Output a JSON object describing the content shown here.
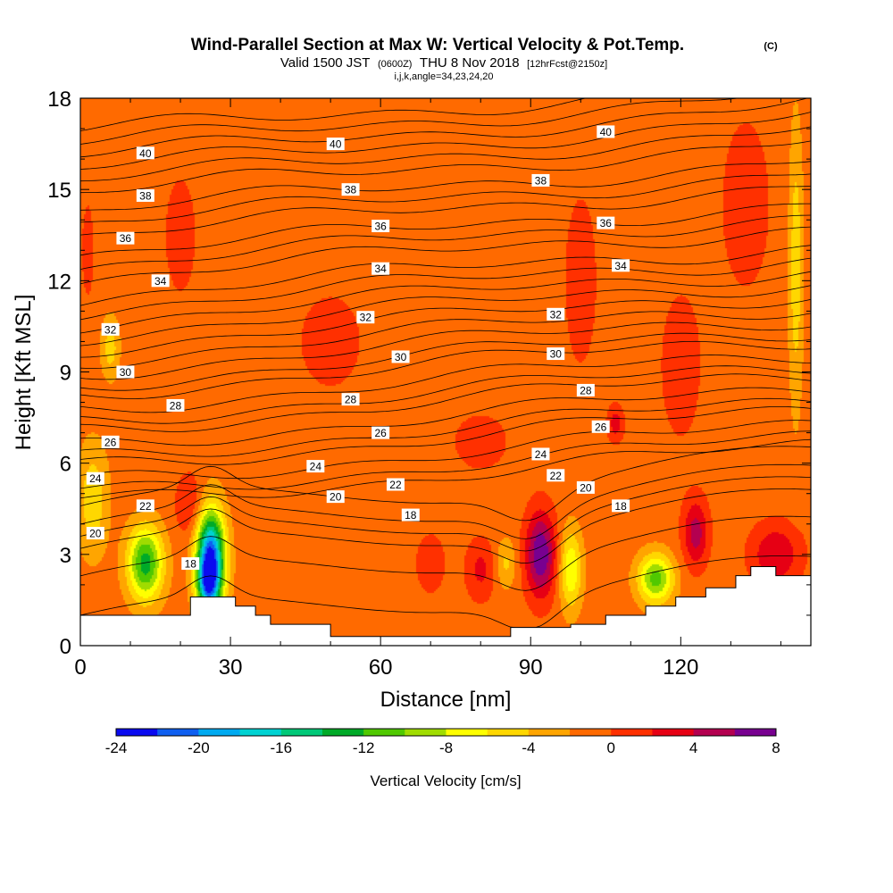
{
  "title": {
    "main": "Wind-Parallel Section at Max W: Vertical Velocity & Pot.Temp.",
    "copyright": "(C)",
    "valid_prefix": "Valid 1500 JST",
    "valid_utc": "(0600Z)",
    "valid_date": "THU 8 Nov 2018",
    "forecast": "[12hrFcst@2150z]",
    "indices": "i,j,k,angle=34,23,24,20"
  },
  "chart_data": {
    "type": "heatmap",
    "title": "Wind-Parallel Section at Max W: Vertical Velocity & Pot.Temp.",
    "xlabel": "Distance [nm]",
    "ylabel": "Height [Kft MSL]",
    "xlim": [
      0,
      146
    ],
    "ylim": [
      0,
      18
    ],
    "x_ticks": [
      "0",
      "30",
      "60",
      "90",
      "120"
    ],
    "y_ticks": [
      "0",
      "3",
      "6",
      "9",
      "12",
      "15",
      "18"
    ],
    "background_value": -1,
    "velocity_features": [
      {
        "x": 13,
        "y": 2.7,
        "sx": 3.5,
        "sy": 1.2,
        "amp": -12
      },
      {
        "x": 26,
        "y": 2.8,
        "sx": 2.8,
        "sy": 1.6,
        "amp": -22
      },
      {
        "x": 25.5,
        "y": 2.0,
        "sx": 2.0,
        "sy": 0.8,
        "amp": -8
      },
      {
        "x": 22,
        "y": 4.6,
        "sx": 3.0,
        "sy": 1.1,
        "amp": 3
      },
      {
        "x": 2.5,
        "y": 4.8,
        "sx": 3.0,
        "sy": 1.8,
        "amp": -4.5
      },
      {
        "x": 92,
        "y": 3.0,
        "sx": 3.0,
        "sy": 1.4,
        "amp": 9
      },
      {
        "x": 98,
        "y": 2.5,
        "sx": 2.2,
        "sy": 1.3,
        "amp": -7
      },
      {
        "x": 115,
        "y": 2.2,
        "sx": 3.5,
        "sy": 0.8,
        "amp": -10
      },
      {
        "x": 123,
        "y": 3.7,
        "sx": 2.5,
        "sy": 1.1,
        "amp": 6
      },
      {
        "x": 139,
        "y": 3.0,
        "sx": 5.0,
        "sy": 1.0,
        "amp": 5
      },
      {
        "x": 143,
        "y": 12.5,
        "sx": 1.4,
        "sy": 4.5,
        "amp": -4.5
      },
      {
        "x": 6,
        "y": 9.8,
        "sx": 1.8,
        "sy": 1.0,
        "amp": -4
      },
      {
        "x": 107,
        "y": 7.3,
        "sx": 1.6,
        "sy": 0.6,
        "amp": 4
      },
      {
        "x": 120,
        "y": 9.2,
        "sx": 5.0,
        "sy": 3.0,
        "amp": 1.8
      },
      {
        "x": 133,
        "y": 14.5,
        "sx": 6.0,
        "sy": 3.5,
        "amp": 1.8
      },
      {
        "x": 100,
        "y": 12.0,
        "sx": 4.0,
        "sy": 3.5,
        "amp": 1.8
      },
      {
        "x": 50,
        "y": 10.0,
        "sx": 8.0,
        "sy": 2.0,
        "amp": 1.7
      },
      {
        "x": 20,
        "y": 13.5,
        "sx": 4.0,
        "sy": 2.5,
        "amp": 1.7
      },
      {
        "x": 80,
        "y": 6.7,
        "sx": 7.0,
        "sy": 1.2,
        "amp": 1.7
      },
      {
        "x": 70,
        "y": 2.7,
        "sx": 3.0,
        "sy": 1.0,
        "amp": 2.5
      },
      {
        "x": 80,
        "y": 2.5,
        "sx": 3.0,
        "sy": 1.0,
        "amp": 3.5
      },
      {
        "x": 85,
        "y": 2.7,
        "sx": 2.0,
        "sy": 0.8,
        "amp": -3.5
      },
      {
        "x": 1.5,
        "y": 13.0,
        "sx": 1.5,
        "sy": 2.0,
        "amp": 1.7
      }
    ],
    "theta_contours": [
      {
        "base": 1.6,
        "label": "18",
        "label_positions": [
          [
            22,
            2.7
          ],
          [
            66,
            4.3
          ],
          [
            108,
            4.6
          ]
        ]
      },
      {
        "base": 2.9,
        "label": "20",
        "label_positions": [
          [
            3,
            3.7
          ],
          [
            51,
            4.9
          ],
          [
            101,
            5.2
          ]
        ]
      },
      {
        "base": 3.8,
        "label": "22",
        "label_positions": [
          [
            13,
            4.6
          ],
          [
            63,
            5.3
          ],
          [
            95,
            5.6
          ]
        ]
      },
      {
        "base": 5.2,
        "label": "24",
        "label_positions": [
          [
            3,
            5.5
          ],
          [
            47,
            5.9
          ],
          [
            92,
            6.3
          ]
        ]
      },
      {
        "base": 6.3,
        "label": "26",
        "label_positions": [
          [
            6,
            6.7
          ],
          [
            60,
            7.0
          ],
          [
            104,
            7.2
          ]
        ]
      },
      {
        "base": 7.5,
        "label": "28",
        "label_positions": [
          [
            19,
            7.9
          ],
          [
            54,
            8.1
          ],
          [
            101,
            8.4
          ]
        ]
      },
      {
        "base": 8.7,
        "label": "30",
        "label_positions": [
          [
            9,
            9.0
          ],
          [
            64,
            9.5
          ],
          [
            95,
            9.6
          ]
        ]
      },
      {
        "base": 9.9,
        "label": "32",
        "label_positions": [
          [
            6,
            10.4
          ],
          [
            57,
            10.8
          ],
          [
            95,
            10.9
          ]
        ]
      },
      {
        "base": 11.5,
        "label": "34",
        "label_positions": [
          [
            16,
            12.0
          ],
          [
            60,
            12.4
          ],
          [
            108,
            12.5
          ]
        ]
      },
      {
        "base": 12.9,
        "label": "36",
        "label_positions": [
          [
            9,
            13.4
          ],
          [
            60,
            13.8
          ],
          [
            105,
            13.9
          ]
        ]
      },
      {
        "base": 14.3,
        "label": "38",
        "label_positions": [
          [
            13,
            14.8
          ],
          [
            54,
            15.0
          ],
          [
            92,
            15.3
          ]
        ]
      },
      {
        "base": 15.7,
        "label": "40",
        "label_positions": [
          [
            13,
            16.2
          ],
          [
            51,
            16.5
          ],
          [
            105,
            16.9
          ]
        ]
      }
    ],
    "theta_unlabeled_bases": [
      4.2,
      4.6,
      5.6,
      5.9,
      6.8,
      7.1,
      8.0,
      8.3,
      9.2,
      9.5,
      10.3,
      10.7,
      11.1,
      11.9,
      12.3,
      13.3,
      13.7,
      14.7,
      15.1,
      16.1,
      16.5,
      16.9,
      17.3,
      17.7
    ],
    "terrain": [
      [
        0,
        1.0
      ],
      [
        22,
        1.0
      ],
      [
        22,
        1.6
      ],
      [
        31,
        1.6
      ],
      [
        31,
        1.3
      ],
      [
        35,
        1.3
      ],
      [
        35,
        1.0
      ],
      [
        38,
        1.0
      ],
      [
        38,
        0.7
      ],
      [
        50,
        0.7
      ],
      [
        50,
        0.3
      ],
      [
        86,
        0.3
      ],
      [
        86,
        0.6
      ],
      [
        98,
        0.6
      ],
      [
        98,
        0.7
      ],
      [
        105,
        0.7
      ],
      [
        105,
        1.0
      ],
      [
        113,
        1.0
      ],
      [
        113,
        1.3
      ],
      [
        119,
        1.3
      ],
      [
        119,
        1.6
      ],
      [
        125,
        1.6
      ],
      [
        125,
        1.9
      ],
      [
        131,
        1.9
      ],
      [
        131,
        2.3
      ],
      [
        134,
        2.3
      ],
      [
        134,
        2.6
      ],
      [
        139,
        2.6
      ],
      [
        139,
        2.3
      ],
      [
        146,
        2.3
      ]
    ],
    "colorbar": {
      "label": "Vertical Velocity [cm/s]",
      "tick_labels": [
        "-24",
        "-20",
        "-16",
        "-12",
        "-8",
        "-4",
        "0",
        "4",
        "8"
      ],
      "bins": [
        -24,
        -22,
        -20,
        -18,
        -16,
        -14,
        -12,
        -10,
        -8,
        -6,
        -4,
        -2,
        0,
        2,
        4,
        6,
        8
      ],
      "colors": [
        "#0a0af0",
        "#0f5ff0",
        "#00aaf0",
        "#00d2d2",
        "#00c878",
        "#00aa28",
        "#50c800",
        "#a0dc00",
        "#ffff00",
        "#ffd700",
        "#ffa500",
        "#ff6a00",
        "#ff3000",
        "#e60014",
        "#b40050",
        "#780090"
      ]
    }
  }
}
